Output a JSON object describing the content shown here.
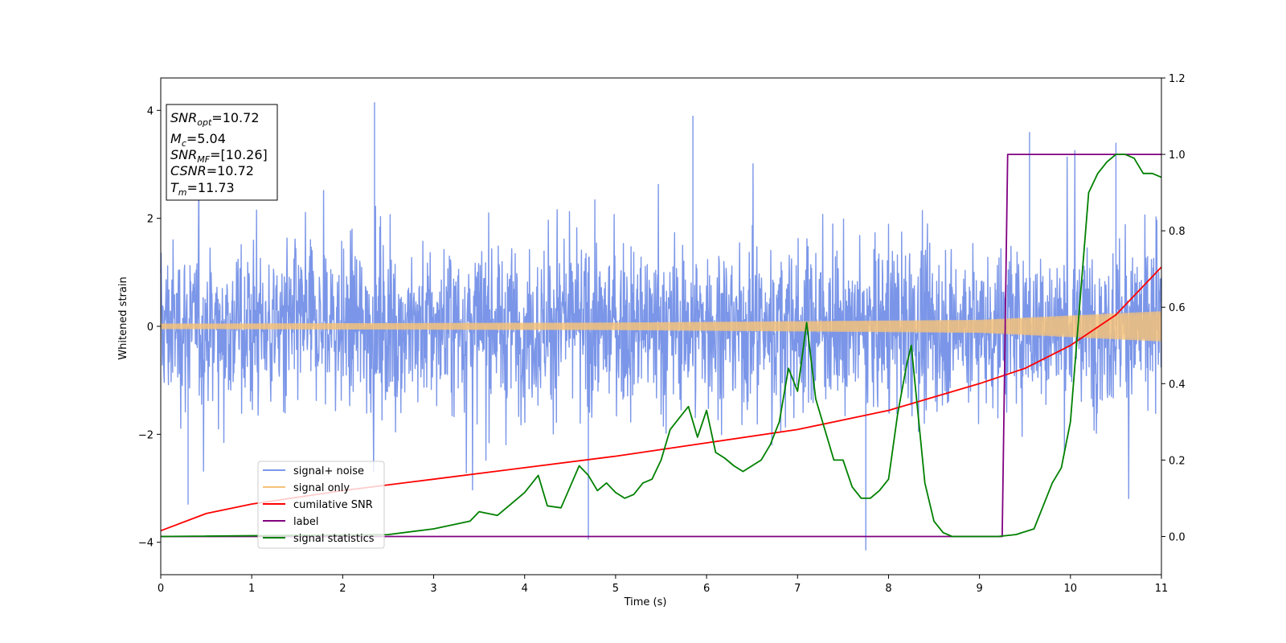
{
  "chart_data": {
    "type": "line",
    "xlabel": "Time (s)",
    "ylabel": "Whitened strain",
    "xlim": [
      0,
      11
    ],
    "ylim": [
      -4.6,
      4.6
    ],
    "y2lim": [
      -0.1,
      1.2
    ],
    "xticks": [
      "0",
      "1",
      "2",
      "3",
      "4",
      "5",
      "6",
      "7",
      "8",
      "9",
      "10",
      "11"
    ],
    "yticks": [
      "4",
      "2",
      "0",
      "−2",
      "−4"
    ],
    "y2ticks": [
      "1.2",
      "1.0",
      "0.8",
      "0.6",
      "0.4",
      "0.2",
      "0.0"
    ],
    "grid": false,
    "legend_position": "lower-left",
    "annotation": {
      "snr_opt": "10.72",
      "mc": "5.04",
      "snr_mf": "[10.26]",
      "csnr": "10.72",
      "tm": "11.73"
    },
    "series": [
      {
        "name": "signal+ noise",
        "axis": "left",
        "color": "#7b96e8",
        "description_range": [
          -4.15,
          4.15
        ],
        "peaks": [
          [
            0.3,
            -3.3
          ],
          [
            2.35,
            4.15
          ],
          [
            4.7,
            -3.95
          ],
          [
            5.85,
            3.9
          ],
          [
            7.75,
            -4.15
          ],
          [
            9.55,
            3.6
          ],
          [
            10.5,
            3.4
          ]
        ]
      },
      {
        "name": "signal only",
        "axis": "left",
        "color": "#f5c27a",
        "envelope": [
          [
            0,
            0.05
          ],
          [
            5,
            0.07
          ],
          [
            9,
            0.12
          ],
          [
            11,
            0.28
          ]
        ]
      },
      {
        "name": "cumilative SNR",
        "axis": "right",
        "color": "#ff0000",
        "x": [
          0,
          0.5,
          1,
          2,
          3,
          4,
          5,
          6,
          7,
          8,
          9,
          9.5,
          10,
          10.5,
          11
        ],
        "values": [
          0.015,
          0.06,
          0.085,
          0.12,
          0.15,
          0.18,
          0.21,
          0.245,
          0.28,
          0.33,
          0.4,
          0.44,
          0.5,
          0.58,
          0.705
        ]
      },
      {
        "name": "label",
        "axis": "right",
        "color": "#800080",
        "x": [
          0,
          9.25,
          9.31,
          11
        ],
        "values": [
          0,
          0,
          1,
          1
        ]
      },
      {
        "name": "signal statistics",
        "axis": "right",
        "color": "#008000",
        "x": [
          0,
          2.5,
          3.0,
          3.4,
          3.5,
          3.7,
          3.85,
          4.0,
          4.15,
          4.25,
          4.4,
          4.5,
          4.6,
          4.7,
          4.8,
          4.9,
          5.0,
          5.1,
          5.2,
          5.3,
          5.4,
          5.5,
          5.6,
          5.7,
          5.8,
          5.9,
          6.0,
          6.1,
          6.2,
          6.3,
          6.4,
          6.5,
          6.6,
          6.7,
          6.8,
          6.9,
          7.0,
          7.1,
          7.2,
          7.3,
          7.4,
          7.5,
          7.6,
          7.7,
          7.8,
          7.9,
          8.0,
          8.1,
          8.2,
          8.25,
          8.3,
          8.4,
          8.5,
          8.6,
          8.7,
          8.8,
          9.0,
          9.2,
          9.4,
          9.6,
          9.7,
          9.8,
          9.9,
          10.0,
          10.1,
          10.2,
          10.3,
          10.4,
          10.5,
          10.6,
          10.7,
          10.8,
          10.9,
          11.0
        ],
        "values": [
          0,
          0.005,
          0.02,
          0.04,
          0.065,
          0.055,
          0.085,
          0.115,
          0.16,
          0.08,
          0.075,
          0.13,
          0.185,
          0.16,
          0.12,
          0.14,
          0.115,
          0.1,
          0.11,
          0.14,
          0.15,
          0.2,
          0.28,
          0.31,
          0.34,
          0.26,
          0.33,
          0.22,
          0.205,
          0.185,
          0.17,
          0.185,
          0.2,
          0.24,
          0.3,
          0.44,
          0.38,
          0.56,
          0.36,
          0.28,
          0.2,
          0.2,
          0.13,
          0.1,
          0.1,
          0.12,
          0.15,
          0.32,
          0.45,
          0.5,
          0.38,
          0.14,
          0.04,
          0.01,
          0.0,
          0.0,
          0.0,
          0.0,
          0.005,
          0.02,
          0.08,
          0.14,
          0.18,
          0.3,
          0.6,
          0.9,
          0.95,
          0.98,
          1.0,
          1.0,
          0.99,
          0.95,
          0.95,
          0.94
        ]
      }
    ]
  }
}
